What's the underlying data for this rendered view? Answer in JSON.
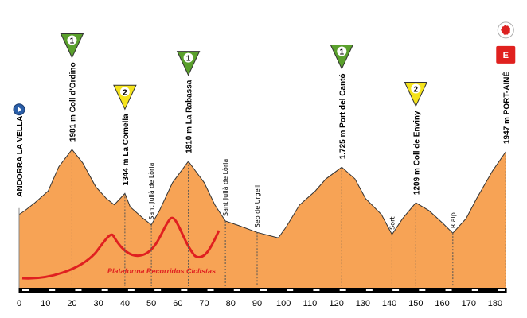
{
  "chart_data": {
    "type": "area",
    "x": [
      0,
      2,
      6,
      11,
      15,
      20,
      24,
      29,
      33,
      36,
      40,
      42,
      47,
      50,
      53,
      58,
      64,
      70,
      74,
      78,
      83,
      90,
      98,
      101,
      106,
      112,
      116,
      122,
      127,
      131,
      137,
      141,
      145,
      150,
      155,
      160,
      164,
      169,
      173,
      179,
      184
    ],
    "values": [
      1040,
      1090,
      1210,
      1380,
      1730,
      1981,
      1790,
      1440,
      1270,
      1180,
      1344,
      1150,
      980,
      890,
      1090,
      1500,
      1810,
      1500,
      1180,
      945,
      880,
      780,
      700,
      860,
      1175,
      1380,
      1555,
      1725,
      1555,
      1270,
      1040,
      750,
      980,
      1209,
      1095,
      920,
      770,
      980,
      1270,
      1670,
      1947
    ],
    "color": "#f7a355",
    "xlim": [
      0,
      185
    ],
    "ylim": [
      0,
      2150
    ],
    "xticks": [
      0,
      10,
      20,
      30,
      40,
      50,
      60,
      70,
      80,
      90,
      100,
      110,
      120,
      130,
      140,
      150,
      160,
      170,
      180
    ],
    "category_colors": {
      "1": "#5aa02c",
      "2": "#f5e31c",
      "E": "#e0211f"
    },
    "start": {
      "x": 0,
      "label": "ANDORRA LA VELLA"
    },
    "peaks": [
      {
        "x": 20,
        "label": "1981 m Coll d'Ordino",
        "category": "1"
      },
      {
        "x": 40,
        "label": "1344 m La Comella",
        "category": "2"
      },
      {
        "x": 64,
        "label": "1810 m La Rabassa",
        "category": "1"
      },
      {
        "x": 122,
        "label": "1.725 m Port del Cantó",
        "category": "1"
      },
      {
        "x": 150,
        "label": "1209 m Coll de Enviny",
        "category": "2"
      },
      {
        "x": 184,
        "label": "1947 m PORT-AINÉ",
        "category": "E"
      }
    ],
    "places": [
      {
        "x": 50,
        "label": "Sant Julià de Lòria"
      },
      {
        "x": 78,
        "label": "Sant Julià de Lòria"
      },
      {
        "x": 90,
        "label": "Seo de Urgell"
      },
      {
        "x": 141,
        "label": "Sort"
      },
      {
        "x": 164,
        "label": "Rialp"
      }
    ],
    "watermark": "Plataforma Recorridos Ciclistas"
  }
}
